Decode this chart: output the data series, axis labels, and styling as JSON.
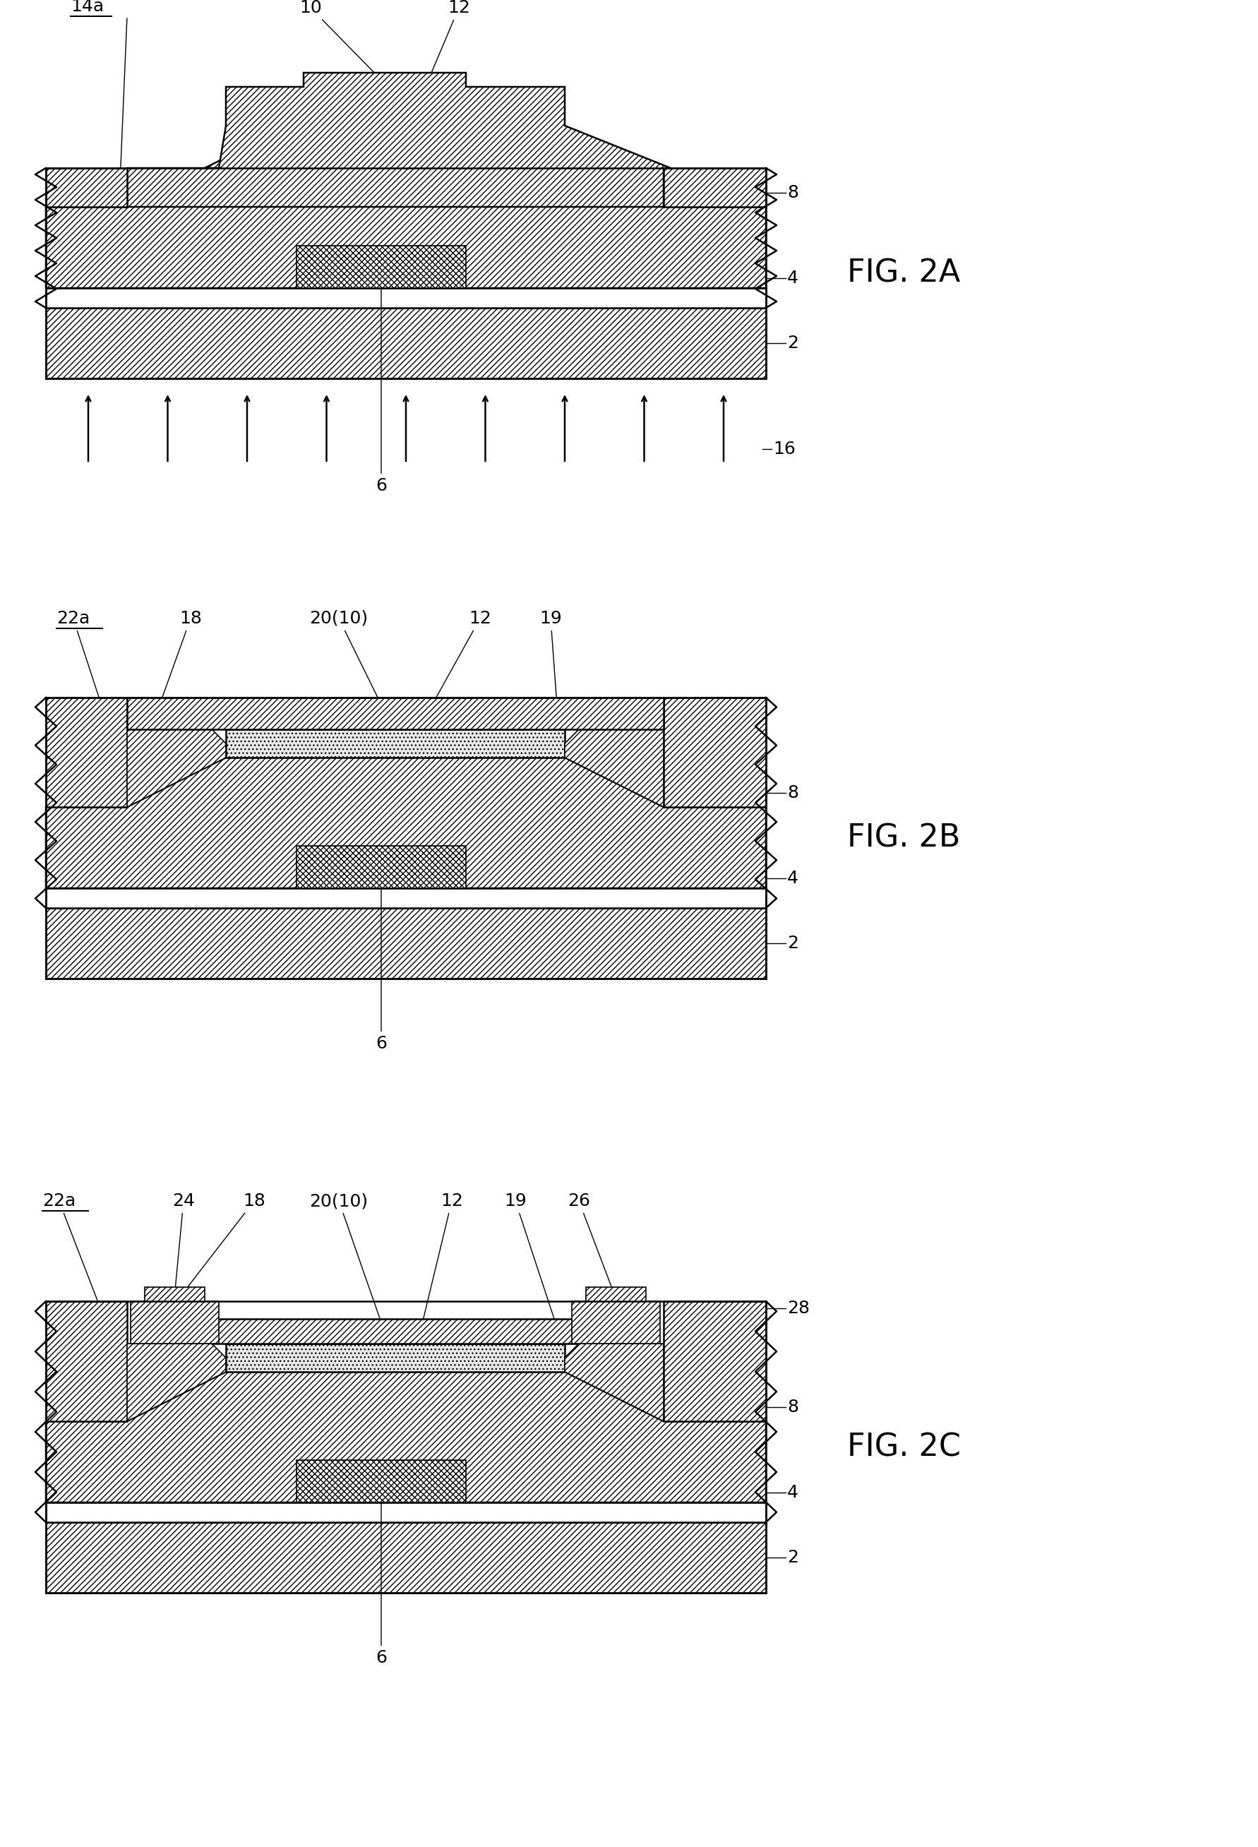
{
  "background_color": "#ffffff",
  "line_color": "#000000",
  "fig_label_fontsize": 32,
  "annotation_fontsize": 18,
  "lw": 1.8,
  "tlw": 1.2,
  "fig_labels": [
    "FIG. 2A",
    "FIG. 2B",
    "FIG. 2C"
  ]
}
